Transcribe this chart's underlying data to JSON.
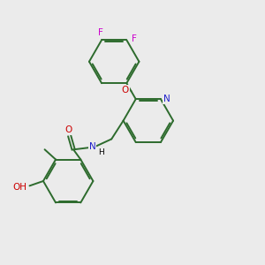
{
  "bg_color": "#ebebeb",
  "bond_color": "#2d6b2d",
  "N_color": "#2020cc",
  "O_color": "#cc0000",
  "F_color": "#cc00cc",
  "line_width": 1.4,
  "figsize": [
    3.0,
    3.0
  ],
  "dpi": 100,
  "xlim": [
    0,
    10
  ],
  "ylim": [
    0,
    10
  ]
}
